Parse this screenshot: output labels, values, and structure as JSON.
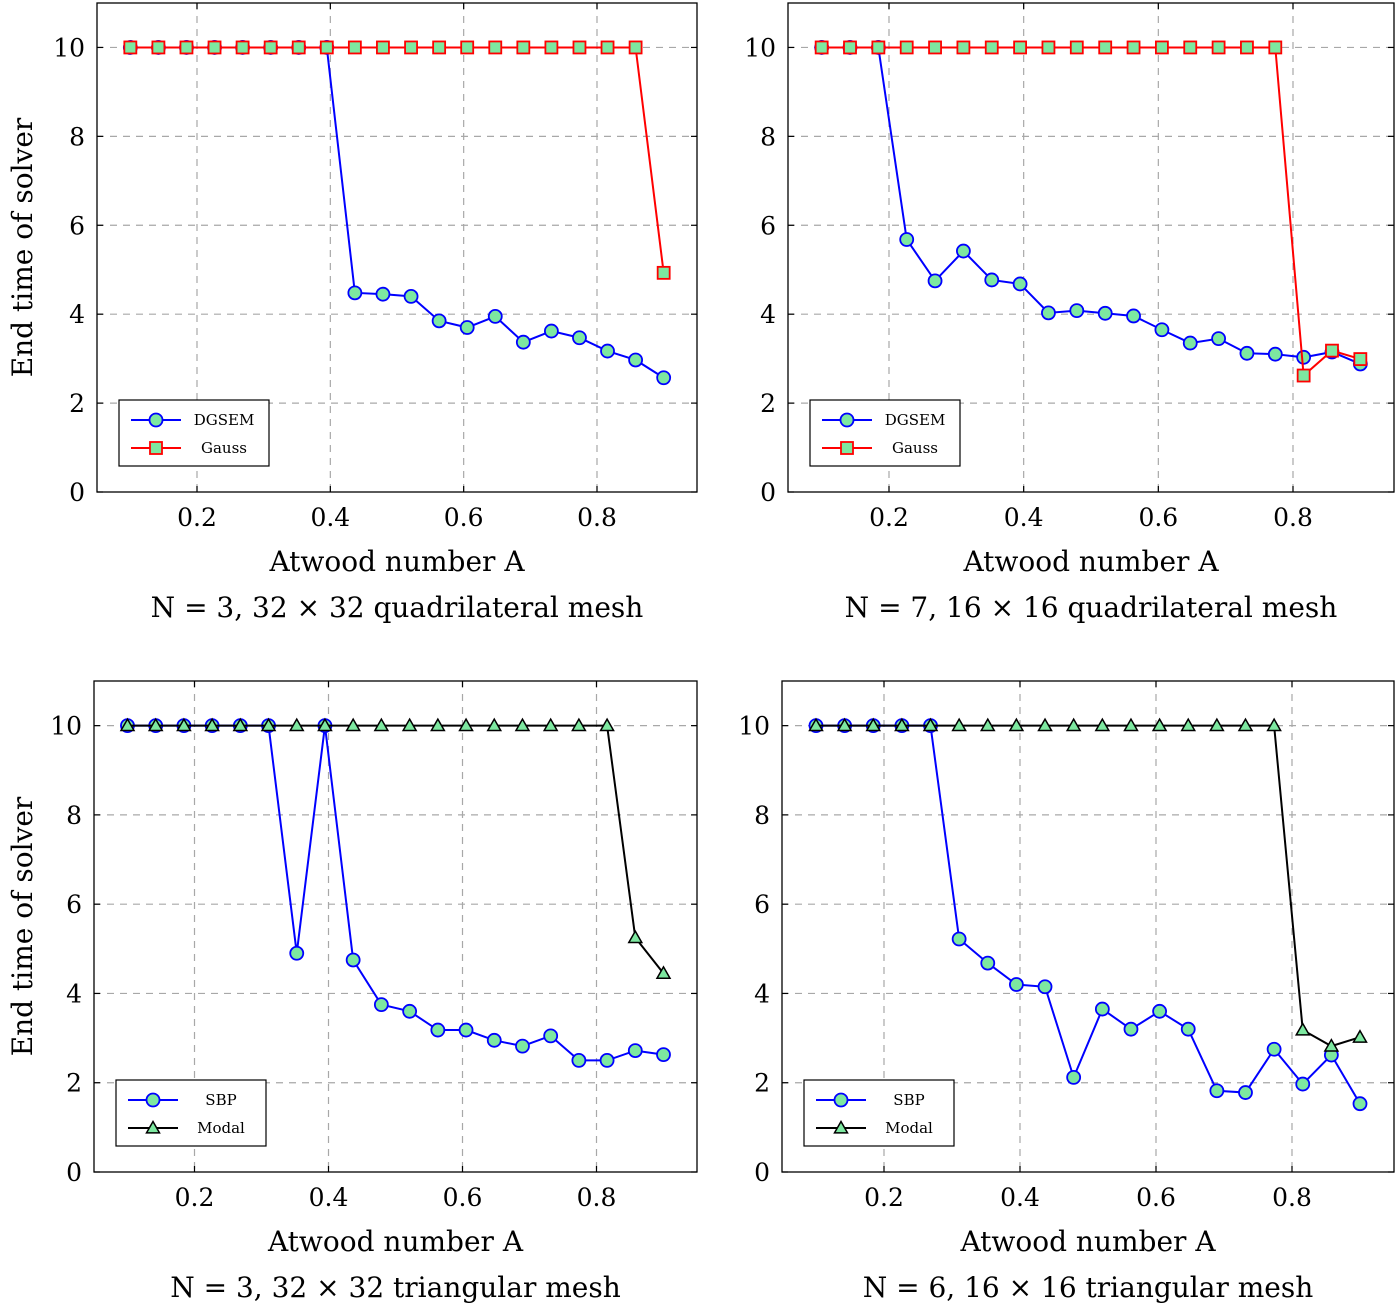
{
  "chart_data": [
    {
      "type": "line",
      "caption": "N = 3, 32 × 32 quadrilateral mesh",
      "xlabel": "Atwood number A",
      "ylabel": "End time of solver",
      "xlim": [
        0.05,
        0.95
      ],
      "ylim": [
        0,
        11
      ],
      "xticks": [
        "0.2",
        "0.4",
        "0.6",
        "0.8"
      ],
      "yticks": [
        "0",
        "2",
        "4",
        "6",
        "8",
        "10"
      ],
      "grid": true,
      "legend_position": "lower-left",
      "series": [
        {
          "name": "DGSEM",
          "color": "#0000ff",
          "marker": "circle",
          "x": [
            0.1,
            0.1421,
            0.1842,
            0.2263,
            0.2684,
            0.3105,
            0.3526,
            0.3947,
            0.4368,
            0.4789,
            0.5211,
            0.5632,
            0.6053,
            0.6474,
            0.6895,
            0.7316,
            0.7737,
            0.8158,
            0.8579,
            0.9
          ],
          "y": [
            10,
            10,
            10,
            10,
            10,
            10,
            10,
            10,
            4.48,
            4.45,
            4.4,
            3.85,
            3.7,
            3.95,
            3.37,
            3.62,
            3.47,
            3.17,
            2.97,
            2.57
          ]
        },
        {
          "name": "Gauss",
          "color": "#ff0000",
          "marker": "square",
          "x": [
            0.1,
            0.1421,
            0.1842,
            0.2263,
            0.2684,
            0.3105,
            0.3526,
            0.3947,
            0.4368,
            0.4789,
            0.5211,
            0.5632,
            0.6053,
            0.6474,
            0.6895,
            0.7316,
            0.7737,
            0.8158,
            0.8579,
            0.9
          ],
          "y": [
            10,
            10,
            10,
            10,
            10,
            10,
            10,
            10,
            10,
            10,
            10,
            10,
            10,
            10,
            10,
            10,
            10,
            10,
            10,
            4.93
          ]
        }
      ]
    },
    {
      "type": "line",
      "caption": "N = 7, 16 × 16 quadrilateral mesh",
      "xlabel": "Atwood number A",
      "ylabel": "",
      "xlim": [
        0.05,
        0.95
      ],
      "ylim": [
        0,
        11
      ],
      "xticks": [
        "0.2",
        "0.4",
        "0.6",
        "0.8"
      ],
      "yticks": [
        "0",
        "2",
        "4",
        "6",
        "8",
        "10"
      ],
      "grid": true,
      "legend_position": "lower-left",
      "series": [
        {
          "name": "DGSEM",
          "color": "#0000ff",
          "marker": "circle",
          "x": [
            0.1,
            0.1421,
            0.1842,
            0.2263,
            0.2684,
            0.3105,
            0.3526,
            0.3947,
            0.4368,
            0.4789,
            0.5211,
            0.5632,
            0.6053,
            0.6474,
            0.6895,
            0.7316,
            0.7737,
            0.8158,
            0.8579,
            0.9
          ],
          "y": [
            10,
            10,
            10,
            5.68,
            4.75,
            5.42,
            4.77,
            4.68,
            4.03,
            4.08,
            4.02,
            3.96,
            3.65,
            3.35,
            3.45,
            3.12,
            3.1,
            3.03,
            3.15,
            2.88
          ]
        },
        {
          "name": "Gauss",
          "color": "#ff0000",
          "marker": "square",
          "x": [
            0.1,
            0.1421,
            0.1842,
            0.2263,
            0.2684,
            0.3105,
            0.3526,
            0.3947,
            0.4368,
            0.4789,
            0.5211,
            0.5632,
            0.6053,
            0.6474,
            0.6895,
            0.7316,
            0.7737,
            0.8158,
            0.8579,
            0.9
          ],
          "y": [
            10,
            10,
            10,
            10,
            10,
            10,
            10,
            10,
            10,
            10,
            10,
            10,
            10,
            10,
            10,
            10,
            10,
            2.62,
            3.18,
            2.99
          ]
        }
      ]
    },
    {
      "type": "line",
      "caption": "N = 3, 32 × 32 triangular mesh",
      "xlabel": "Atwood number A",
      "ylabel": "End time of solver",
      "xlim": [
        0.05,
        0.95
      ],
      "ylim": [
        0,
        11
      ],
      "xticks": [
        "0.2",
        "0.4",
        "0.6",
        "0.8"
      ],
      "yticks": [
        "0",
        "2",
        "4",
        "6",
        "8",
        "10"
      ],
      "grid": true,
      "legend_position": "lower-left",
      "series": [
        {
          "name": "SBP",
          "color": "#0000ff",
          "marker": "circle",
          "x": [
            0.1,
            0.1421,
            0.1842,
            0.2263,
            0.2684,
            0.3105,
            0.3526,
            0.3947,
            0.4368,
            0.4789,
            0.5211,
            0.5632,
            0.6053,
            0.6474,
            0.6895,
            0.7316,
            0.7737,
            0.8158,
            0.8579,
            0.9
          ],
          "y": [
            10,
            10,
            10,
            10,
            10,
            10,
            4.9,
            10,
            4.75,
            3.75,
            3.6,
            3.18,
            3.18,
            2.95,
            2.82,
            3.05,
            2.5,
            2.5,
            2.72,
            2.63
          ]
        },
        {
          "name": "Modal",
          "color": "#000000",
          "marker": "triangle",
          "x": [
            0.1,
            0.1421,
            0.1842,
            0.2263,
            0.2684,
            0.3105,
            0.3526,
            0.3947,
            0.4368,
            0.4789,
            0.5211,
            0.5632,
            0.6053,
            0.6474,
            0.6895,
            0.7316,
            0.7737,
            0.8158,
            0.8579,
            0.9
          ],
          "y": [
            10,
            10,
            10,
            10,
            10,
            10,
            10,
            10,
            10,
            10,
            10,
            10,
            10,
            10,
            10,
            10,
            10,
            10,
            5.25,
            4.45
          ]
        }
      ]
    },
    {
      "type": "line",
      "caption": "N = 6, 16 × 16 triangular mesh",
      "xlabel": "Atwood number A",
      "ylabel": "",
      "xlim": [
        0.05,
        0.95
      ],
      "ylim": [
        0,
        11
      ],
      "xticks": [
        "0.2",
        "0.4",
        "0.6",
        "0.8"
      ],
      "yticks": [
        "0",
        "2",
        "4",
        "6",
        "8",
        "10"
      ],
      "grid": true,
      "legend_position": "lower-left",
      "series": [
        {
          "name": "SBP",
          "color": "#0000ff",
          "marker": "circle",
          "x": [
            0.1,
            0.1421,
            0.1842,
            0.2263,
            0.2684,
            0.3105,
            0.3526,
            0.3947,
            0.4368,
            0.4789,
            0.5211,
            0.5632,
            0.6053,
            0.6474,
            0.6895,
            0.7316,
            0.7737,
            0.8158,
            0.8579,
            0.9
          ],
          "y": [
            10,
            10,
            10,
            10,
            10,
            5.22,
            4.68,
            4.2,
            4.15,
            2.12,
            3.65,
            3.2,
            3.6,
            3.2,
            1.82,
            1.78,
            2.75,
            1.97,
            2.62,
            1.53
          ]
        },
        {
          "name": "Modal",
          "color": "#000000",
          "marker": "triangle",
          "x": [
            0.1,
            0.1421,
            0.1842,
            0.2263,
            0.2684,
            0.3105,
            0.3526,
            0.3947,
            0.4368,
            0.4789,
            0.5211,
            0.5632,
            0.6053,
            0.6474,
            0.6895,
            0.7316,
            0.7737,
            0.8158,
            0.8579,
            0.9
          ],
          "y": [
            10,
            10,
            10,
            10,
            10,
            10,
            10,
            10,
            10,
            10,
            10,
            10,
            10,
            10,
            10,
            10,
            10,
            3.18,
            2.82,
            3.02
          ]
        }
      ]
    }
  ],
  "marker_fill": "#7de8a0"
}
